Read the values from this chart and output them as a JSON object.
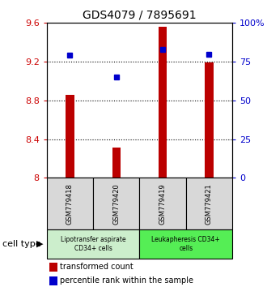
{
  "title": "GDS4079 / 7895691",
  "samples": [
    "GSM779418",
    "GSM779420",
    "GSM779419",
    "GSM779421"
  ],
  "transformed_counts": [
    8.86,
    8.31,
    9.56,
    9.19
  ],
  "percentile_ranks": [
    79,
    65,
    83,
    80
  ],
  "ylim_left": [
    8.0,
    9.6
  ],
  "ylim_right": [
    0,
    100
  ],
  "yticks_left": [
    8.0,
    8.4,
    8.8,
    9.2,
    9.6
  ],
  "ytick_labels_left": [
    "8",
    "8.4",
    "8.8",
    "9.2",
    "9.6"
  ],
  "yticks_right": [
    0,
    25,
    50,
    75,
    100
  ],
  "ytick_labels_right": [
    "0",
    "25",
    "50",
    "75",
    "100%"
  ],
  "bar_color": "#bb0000",
  "dot_color": "#0000cc",
  "group1_color": "#cceecc",
  "group2_color": "#55ee55",
  "group1_label": "Lipotransfer aspirate\nCD34+ cells",
  "group2_label": "Leukapheresis CD34+\ncells",
  "group1_samples": [
    0,
    1
  ],
  "group2_samples": [
    2,
    3
  ],
  "sample_bg_color": "#d8d8d8",
  "cell_type_label": "cell type",
  "legend_bar_label": "transformed count",
  "legend_dot_label": "percentile rank within the sample",
  "bar_width": 0.18
}
